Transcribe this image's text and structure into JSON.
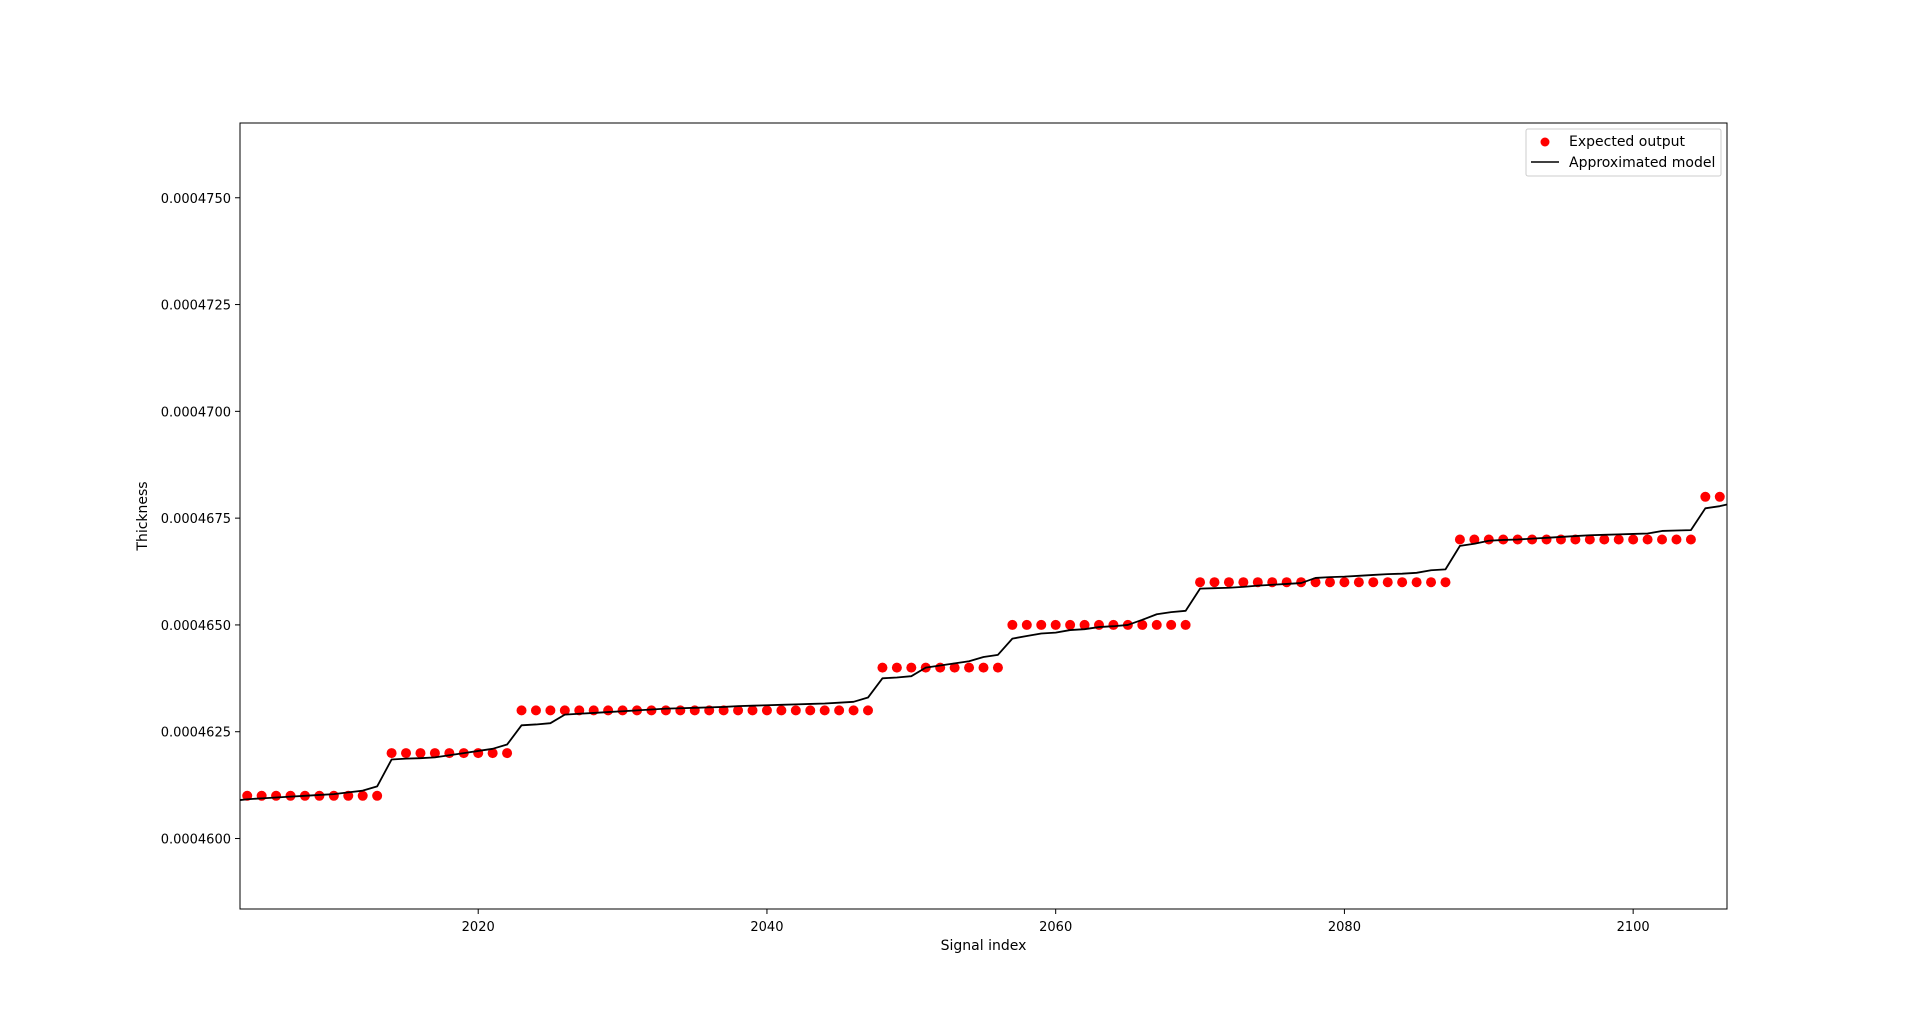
{
  "chart_data": {
    "type": "line",
    "xlabel": "Signal index",
    "ylabel": "Thickness",
    "xlim": [
      2003.5,
      2106.5
    ],
    "ylim": [
      0.00045835,
      0.00047675
    ],
    "x_ticks": [
      2020,
      2040,
      2060,
      2080,
      2100
    ],
    "x_tick_labels": [
      "2020",
      "2040",
      "2060",
      "2080",
      "2100"
    ],
    "y_ticks": [
      0.00046,
      0.0004625,
      0.000465,
      0.0004675,
      0.00047,
      0.0004725,
      0.000475
    ],
    "y_tick_labels": [
      "0.0004600",
      "0.0004625",
      "0.0004650",
      "0.0004675",
      "0.0004700",
      "0.0004725",
      "0.0004750"
    ],
    "grid": false,
    "legend_position": "top-right",
    "series": [
      {
        "name": "Expected output",
        "kind": "scatter",
        "color": "#ff0000",
        "x": [
          2004,
          2005,
          2006,
          2007,
          2008,
          2009,
          2010,
          2011,
          2012,
          2013,
          2014,
          2015,
          2016,
          2017,
          2018,
          2019,
          2020,
          2021,
          2022,
          2023,
          2024,
          2025,
          2026,
          2027,
          2028,
          2029,
          2030,
          2031,
          2032,
          2033,
          2034,
          2035,
          2036,
          2037,
          2038,
          2039,
          2040,
          2041,
          2042,
          2043,
          2044,
          2045,
          2046,
          2047,
          2048,
          2049,
          2050,
          2051,
          2052,
          2053,
          2054,
          2055,
          2056,
          2057,
          2058,
          2059,
          2060,
          2061,
          2062,
          2063,
          2064,
          2065,
          2066,
          2067,
          2068,
          2069,
          2070,
          2071,
          2072,
          2073,
          2074,
          2075,
          2076,
          2077,
          2078,
          2079,
          2080,
          2081,
          2082,
          2083,
          2084,
          2085,
          2086,
          2087,
          2088,
          2089,
          2090,
          2091,
          2092,
          2093,
          2094,
          2095,
          2096,
          2097,
          2098,
          2099,
          2100,
          2101,
          2102,
          2103,
          2104,
          2105,
          2106
        ],
        "y": [
          0.000461,
          0.000461,
          0.000461,
          0.000461,
          0.000461,
          0.000461,
          0.000461,
          0.000461,
          0.000461,
          0.000461,
          0.000462,
          0.000462,
          0.000462,
          0.000462,
          0.000462,
          0.000462,
          0.000462,
          0.000462,
          0.000462,
          0.000463,
          0.000463,
          0.000463,
          0.000463,
          0.000463,
          0.000463,
          0.000463,
          0.000463,
          0.000463,
          0.000463,
          0.000463,
          0.000463,
          0.000463,
          0.000463,
          0.000463,
          0.000463,
          0.000463,
          0.000463,
          0.000463,
          0.000463,
          0.000463,
          0.000463,
          0.000463,
          0.000463,
          0.000463,
          0.000464,
          0.000464,
          0.000464,
          0.000464,
          0.000464,
          0.000464,
          0.000464,
          0.000464,
          0.000464,
          0.000465,
          0.000465,
          0.000465,
          0.000465,
          0.000465,
          0.000465,
          0.000465,
          0.000465,
          0.000465,
          0.000465,
          0.000465,
          0.000465,
          0.000465,
          0.000466,
          0.000466,
          0.000466,
          0.000466,
          0.000466,
          0.000466,
          0.000466,
          0.000466,
          0.000466,
          0.000466,
          0.000466,
          0.000466,
          0.000466,
          0.000466,
          0.000466,
          0.000466,
          0.000466,
          0.000466,
          0.000467,
          0.000467,
          0.000467,
          0.000467,
          0.000467,
          0.000467,
          0.000467,
          0.000467,
          0.000467,
          0.000467,
          0.000467,
          0.000467,
          0.000467,
          0.000467,
          0.000467,
          0.000467,
          0.000467,
          0.000468,
          0.000468
        ]
      },
      {
        "name": "Approximated model",
        "kind": "line",
        "color": "#000000",
        "x": [
          2003.5,
          2004,
          2005,
          2006,
          2007,
          2008,
          2009,
          2010,
          2011,
          2012,
          2013,
          2014,
          2015,
          2016,
          2017,
          2018,
          2019,
          2020,
          2021,
          2022,
          2023,
          2024,
          2025,
          2026,
          2027,
          2028,
          2029,
          2030,
          2031,
          2032,
          2033,
          2034,
          2035,
          2036,
          2037,
          2038,
          2039,
          2040,
          2041,
          2042,
          2043,
          2044,
          2045,
          2046,
          2047,
          2048,
          2049,
          2050,
          2051,
          2052,
          2053,
          2054,
          2055,
          2056,
          2057,
          2058,
          2059,
          2060,
          2061,
          2062,
          2063,
          2064,
          2065,
          2066,
          2067,
          2068,
          2069,
          2070,
          2071,
          2072,
          2073,
          2074,
          2075,
          2076,
          2077,
          2078,
          2079,
          2080,
          2081,
          2082,
          2083,
          2084,
          2085,
          2086,
          2087,
          2088,
          2089,
          2090,
          2091,
          2092,
          2093,
          2094,
          2095,
          2096,
          2097,
          2098,
          2099,
          2100,
          2101,
          2102,
          2103,
          2104,
          2105,
          2106,
          2106.5
        ],
        "y": [
          0.0004609,
          0.00046092,
          0.00046094,
          0.00046096,
          0.00046098,
          0.000461,
          0.00046102,
          0.00046104,
          0.00046108,
          0.00046112,
          0.00046122,
          0.00046185,
          0.00046187,
          0.00046188,
          0.0004619,
          0.00046195,
          0.000462,
          0.00046205,
          0.0004621,
          0.0004622,
          0.00046265,
          0.00046267,
          0.0004627,
          0.0004629,
          0.00046292,
          0.00046294,
          0.00046296,
          0.00046298,
          0.000463,
          0.00046302,
          0.00046304,
          0.00046305,
          0.00046306,
          0.00046307,
          0.00046308,
          0.0004631,
          0.00046311,
          0.00046312,
          0.00046313,
          0.00046314,
          0.00046315,
          0.00046316,
          0.00046318,
          0.0004632,
          0.0004633,
          0.00046375,
          0.00046377,
          0.0004638,
          0.000464,
          0.00046405,
          0.0004641,
          0.00046415,
          0.00046425,
          0.0004643,
          0.00046468,
          0.00046474,
          0.0004648,
          0.00046482,
          0.00046488,
          0.0004649,
          0.00046495,
          0.00046497,
          0.000465,
          0.00046512,
          0.00046525,
          0.0004653,
          0.00046533,
          0.00046585,
          0.00046586,
          0.00046587,
          0.00046589,
          0.00046592,
          0.00046594,
          0.00046596,
          0.00046598,
          0.0004661,
          0.00046612,
          0.00046613,
          0.00046615,
          0.00046617,
          0.00046619,
          0.0004662,
          0.00046622,
          0.00046628,
          0.0004663,
          0.00046685,
          0.0004669,
          0.00046697,
          0.00046699,
          0.000467,
          0.00046702,
          0.00046704,
          0.00046706,
          0.00046708,
          0.0004671,
          0.00046711,
          0.00046712,
          0.00046713,
          0.00046714,
          0.0004672,
          0.00046721,
          0.00046722,
          0.00046773,
          0.00046778,
          0.00046782
        ]
      }
    ]
  }
}
